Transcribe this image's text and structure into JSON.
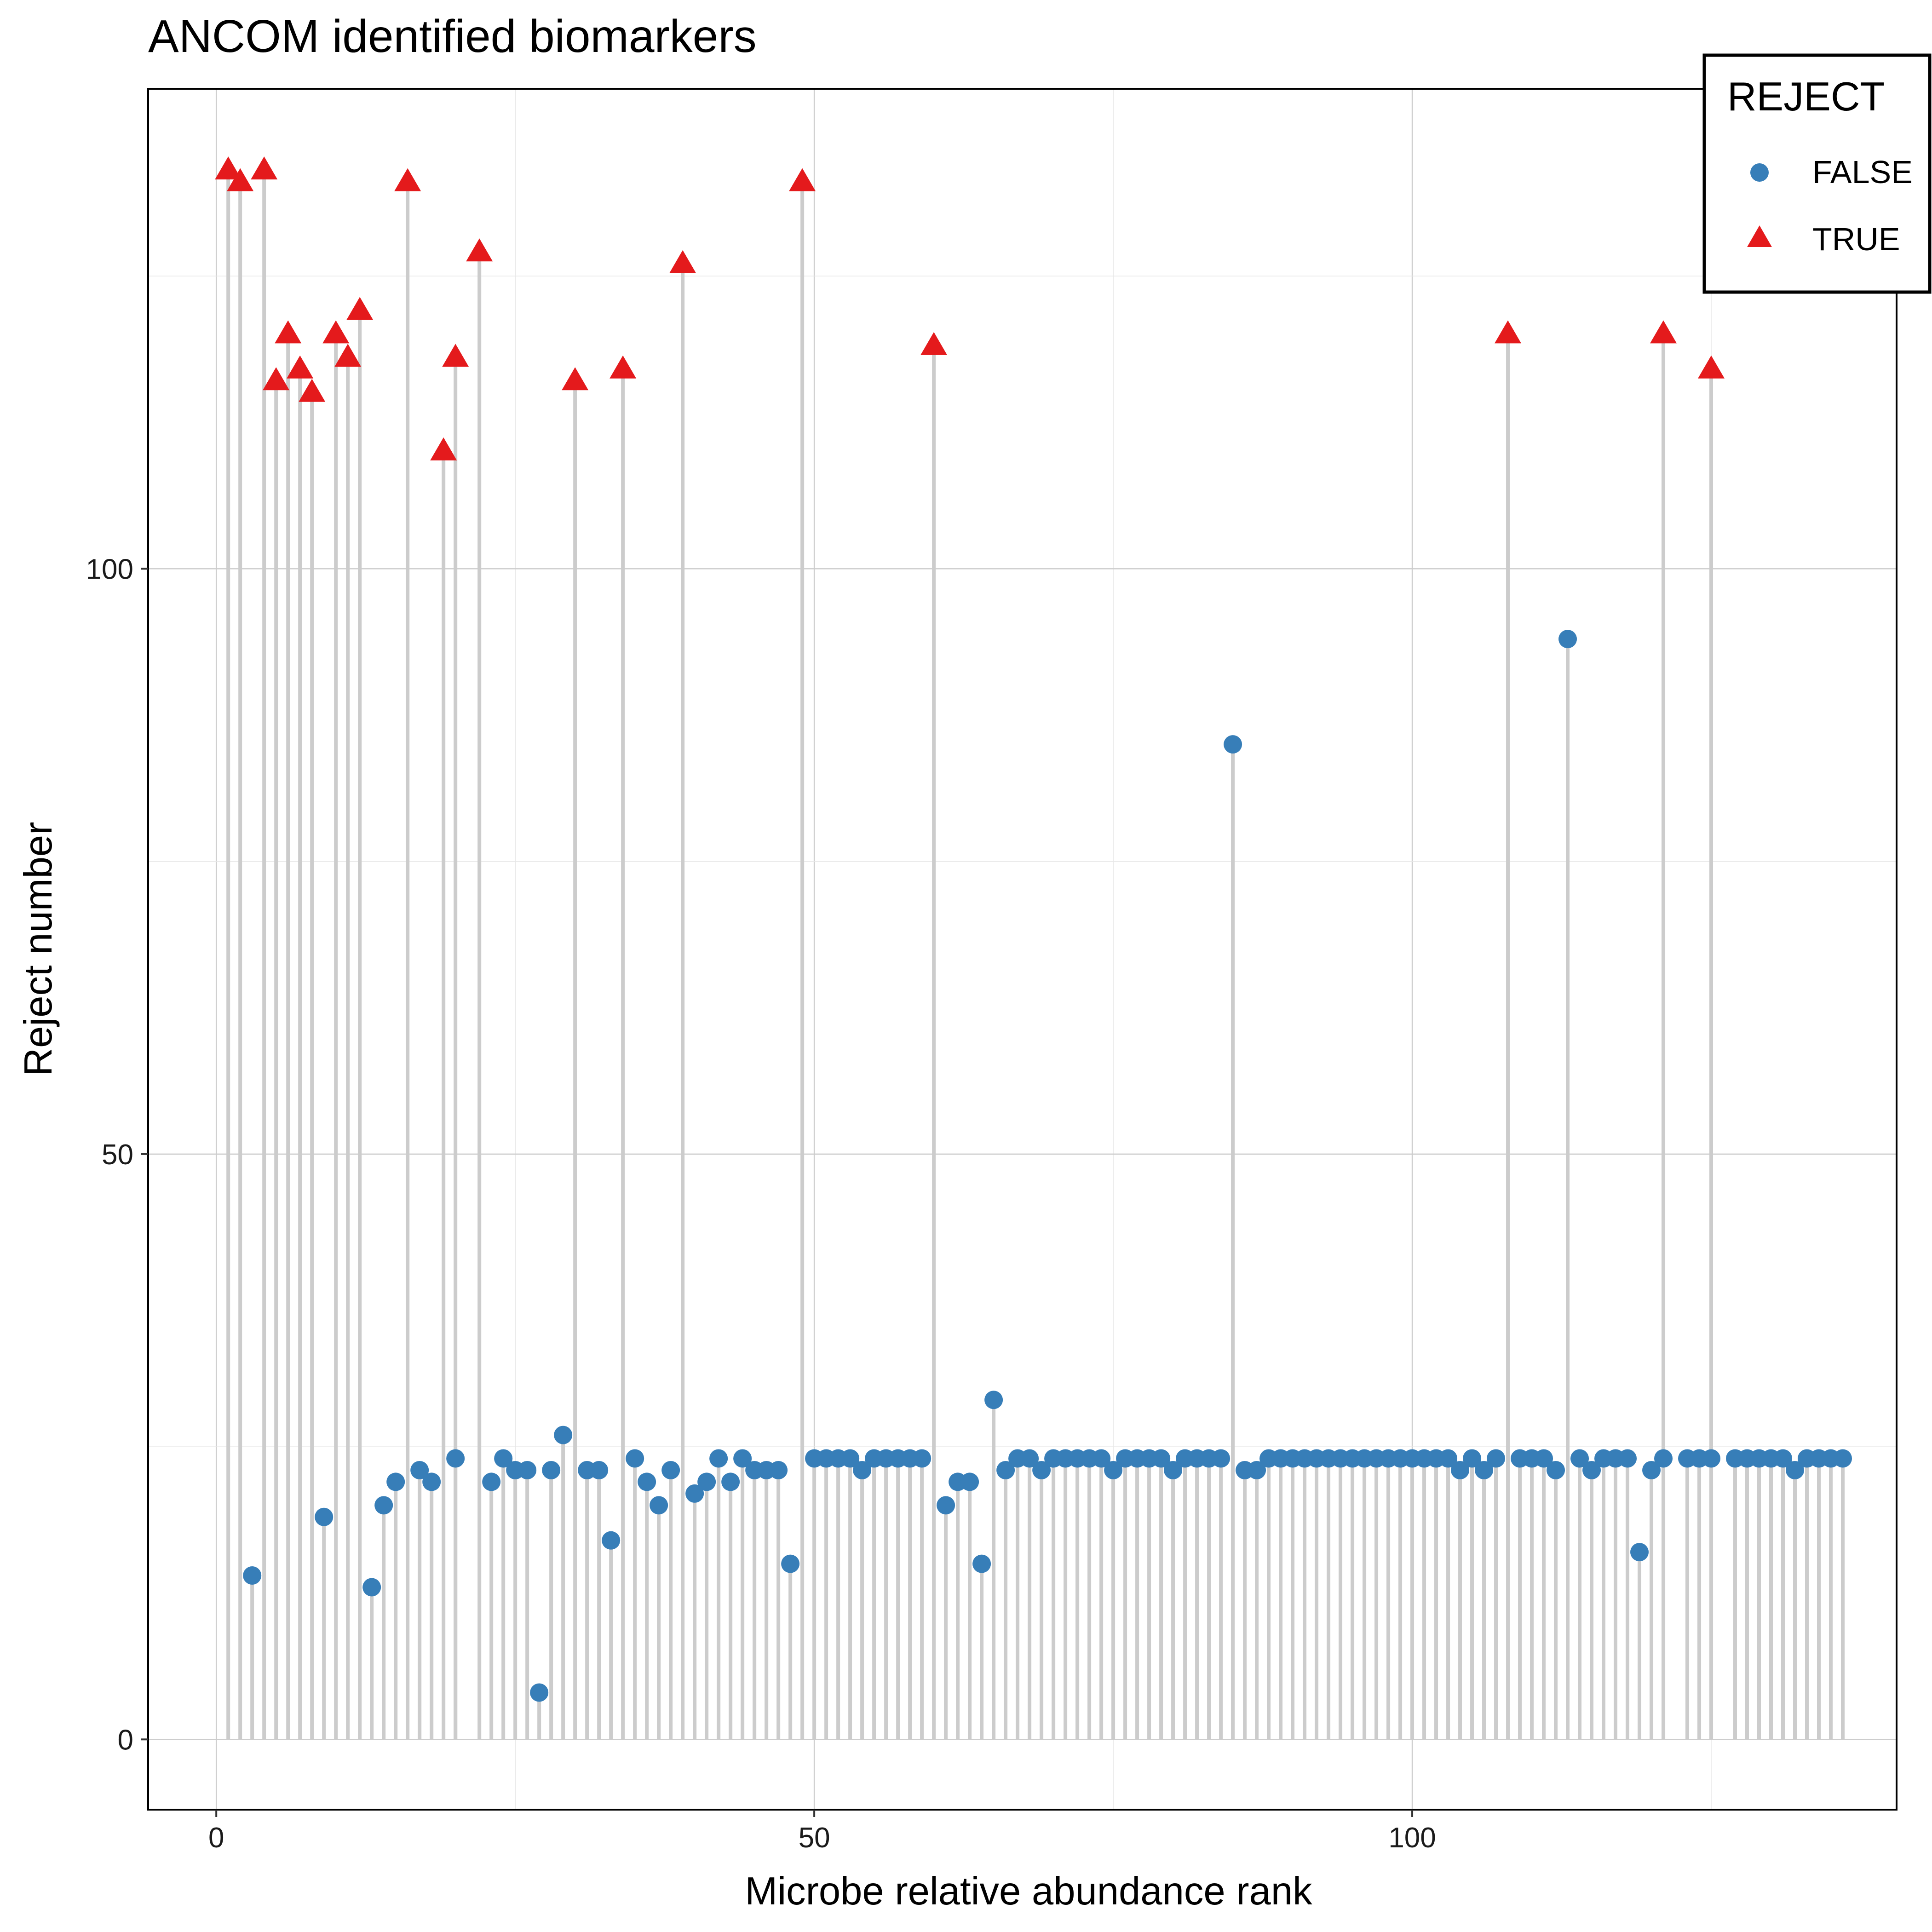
{
  "chart_data": {
    "type": "scatter",
    "subtype": "lollipop",
    "title": "ANCOM identified biomarkers",
    "xlabel": "Microbe relative abundance rank",
    "ylabel": "Reject number",
    "xlim": [
      -5.7,
      140.5
    ],
    "ylim": [
      -6,
      141
    ],
    "x_ticks": [
      0,
      50,
      100
    ],
    "y_ticks": [
      0,
      50,
      100
    ],
    "grid": true,
    "legend": {
      "title": "REJECT",
      "position": "top-right",
      "entries": [
        {
          "label": "FALSE",
          "shape": "circle",
          "color": "#377EB8"
        },
        {
          "label": "TRUE",
          "shape": "triangle",
          "color": "#E41A1C"
        }
      ]
    },
    "stem_color": "#CCCCCC",
    "series": [
      {
        "name": "FALSE",
        "shape": "circle",
        "color": "#377EB8",
        "x": [
          3,
          9,
          13,
          14,
          15,
          17,
          18,
          20,
          23,
          24,
          25,
          26,
          27,
          28,
          29,
          31,
          32,
          33,
          35,
          36,
          37,
          38,
          40,
          41,
          42,
          43,
          44,
          45,
          46,
          47,
          48,
          50,
          51,
          52,
          53,
          54,
          55,
          56,
          57,
          58,
          59,
          61,
          62,
          63,
          64,
          65,
          66,
          67,
          68,
          69,
          70,
          71,
          72,
          73,
          74,
          75,
          76,
          77,
          78,
          79,
          80,
          81,
          82,
          83,
          84,
          85,
          86,
          87,
          88,
          89,
          90,
          91,
          92,
          93,
          94,
          95,
          96,
          97,
          98,
          99,
          100,
          101,
          102,
          103,
          104,
          105,
          106,
          107,
          109,
          110,
          111,
          112,
          113,
          114,
          115,
          116,
          117,
          118,
          119,
          120,
          121,
          123,
          124,
          125,
          127,
          128,
          129,
          130,
          131,
          132,
          133,
          134,
          135,
          136
        ],
        "y": [
          14,
          19,
          13,
          20,
          22,
          23,
          22,
          24,
          22,
          24,
          23,
          23,
          4,
          23,
          26,
          23,
          23,
          17,
          24,
          22,
          20,
          23,
          21,
          22,
          24,
          22,
          24,
          23,
          23,
          23,
          15,
          24,
          24,
          24,
          24,
          23,
          24,
          24,
          24,
          24,
          24,
          20,
          22,
          22,
          15,
          29,
          23,
          24,
          24,
          23,
          24,
          24,
          24,
          24,
          24,
          23,
          24,
          24,
          24,
          24,
          23,
          24,
          24,
          24,
          24,
          85,
          23,
          23,
          24,
          24,
          24,
          24,
          24,
          24,
          24,
          24,
          24,
          24,
          24,
          24,
          24,
          24,
          24,
          24,
          23,
          24,
          23,
          24,
          24,
          24,
          24,
          23,
          94,
          24,
          23,
          24,
          24,
          24,
          16,
          23,
          24,
          24,
          24,
          24,
          24,
          24,
          24,
          24,
          24,
          23,
          24,
          24,
          24,
          24
        ]
      },
      {
        "name": "TRUE",
        "shape": "triangle",
        "color": "#E41A1C",
        "x": [
          1,
          2,
          4,
          5,
          6,
          7,
          8,
          10,
          11,
          12,
          16,
          19,
          20,
          22,
          30,
          34,
          39,
          49,
          60,
          108,
          121,
          125
        ],
        "y": [
          134,
          133,
          134,
          116,
          120,
          117,
          115,
          120,
          118,
          122,
          133,
          110,
          118,
          127,
          116,
          117,
          126,
          133,
          119,
          120,
          120,
          117
        ]
      }
    ]
  }
}
